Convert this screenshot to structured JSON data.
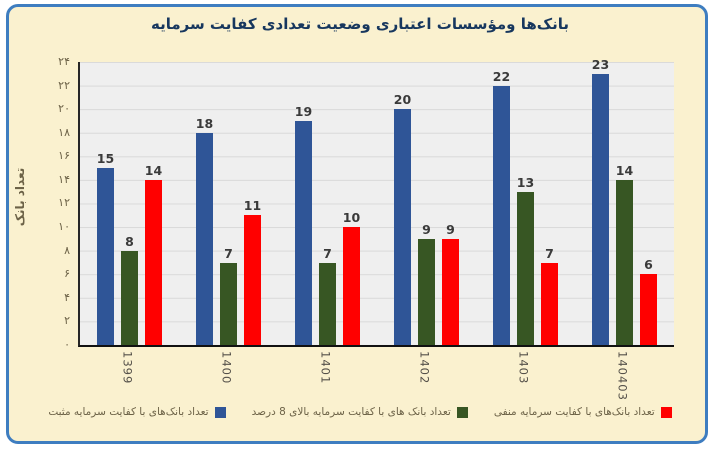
{
  "title": "بانک‌ها ومؤسسات اعتباری وضعیت تعدادی کفایت سرمایه",
  "ylabel": "تعداد بانک",
  "chart_data": {
    "type": "bar",
    "title": "بانک‌ها ومؤسسات اعتباری وضعیت تعدادی کفایت سرمایه",
    "xlabel": "",
    "ylabel": "تعداد بانک",
    "categories": [
      "1399",
      "1400",
      "1401",
      "1402",
      "1403",
      "140403"
    ],
    "series": [
      {
        "name": "تعداد بانک‌های با کفایت سرمایه مثبت",
        "color": "#2F5597",
        "values": [
          15,
          18,
          19,
          20,
          22,
          23
        ]
      },
      {
        "name": "تعداد بانک های با کفایت سرمایه بالای 8 درصد",
        "color": "#375623",
        "values": [
          8,
          7,
          7,
          9,
          13,
          14
        ]
      },
      {
        "name": "تعداد بانک‌های با کفایت سرمایه منفی",
        "color": "#FF0000",
        "values": [
          14,
          11,
          10,
          9,
          7,
          6
        ]
      }
    ],
    "ylim": [
      0,
      24
    ],
    "ytick_step": 2,
    "ytick_labels_top_to_bottom": [
      "۲۴",
      "۲۲",
      "۲۰",
      "۱۸",
      "۱۶",
      "۱۴",
      "۱۲",
      "۱۰",
      "۸",
      "۶",
      "۴",
      "۲",
      "۰"
    ],
    "grid": true,
    "legend_position": "bottom",
    "plot_background": "#EFEFEF",
    "frame_background": "#FAF1CF",
    "frame_border_color": "#3E7DC0",
    "title_color": "#17375E"
  }
}
